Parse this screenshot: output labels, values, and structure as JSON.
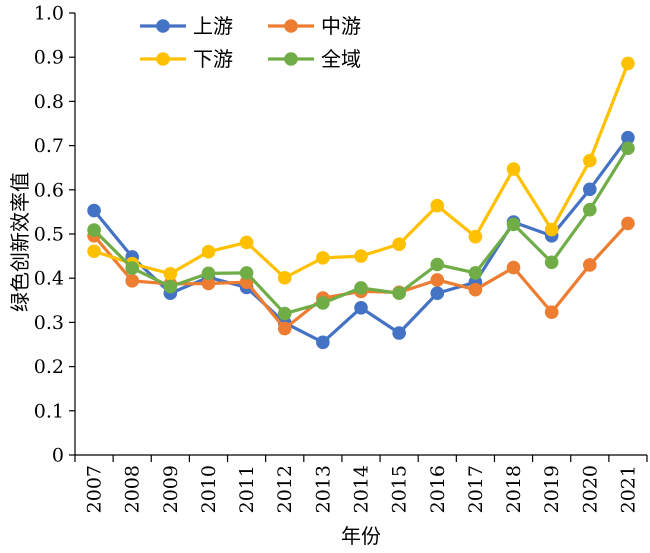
{
  "chart_data": {
    "type": "line",
    "xlabel": "年份",
    "ylabel": "绿色创新效率值",
    "ylim": [
      0,
      1.0
    ],
    "yticks": [
      "0",
      "0.1",
      "0.2",
      "0.3",
      "0.4",
      "0.5",
      "0.6",
      "0.7",
      "0.8",
      "0.9",
      "1.0"
    ],
    "categories": [
      "2007",
      "2008",
      "2009",
      "2010",
      "2011",
      "2012",
      "2013",
      "2014",
      "2015",
      "2016",
      "2017",
      "2018",
      "2019",
      "2020",
      "2021"
    ],
    "grid": false,
    "legend_position": "top-left",
    "series": [
      {
        "name": "上游",
        "color": "#4472c4",
        "values": [
          0.553,
          0.448,
          0.366,
          0.402,
          0.379,
          0.299,
          0.255,
          0.333,
          0.276,
          0.366,
          0.391,
          0.527,
          0.496,
          0.601,
          0.718
        ]
      },
      {
        "name": "中游",
        "color": "#ed7d31",
        "values": [
          0.496,
          0.394,
          0.387,
          0.388,
          0.391,
          0.286,
          0.355,
          0.37,
          0.368,
          0.396,
          0.374,
          0.424,
          0.323,
          0.43,
          0.524
        ]
      },
      {
        "name": "下游",
        "color": "#ffc000",
        "values": [
          0.461,
          0.433,
          0.41,
          0.46,
          0.481,
          0.401,
          0.446,
          0.45,
          0.477,
          0.564,
          0.494,
          0.647,
          0.51,
          0.666,
          0.886
        ]
      },
      {
        "name": "全域",
        "color": "#70ad47",
        "values": [
          0.509,
          0.423,
          0.381,
          0.411,
          0.412,
          0.32,
          0.344,
          0.378,
          0.366,
          0.431,
          0.412,
          0.522,
          0.436,
          0.555,
          0.694
        ]
      }
    ]
  }
}
